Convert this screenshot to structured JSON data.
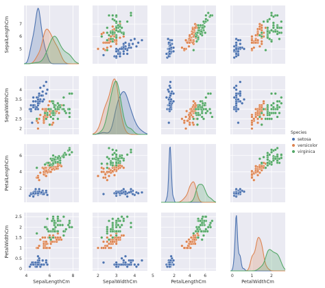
{
  "chart_data": {
    "type": "pairplot",
    "variables": [
      "SepalLengthCm",
      "SepalWidthCm",
      "PetalLengthCm",
      "PetalWidthCm"
    ],
    "axis_labels": [
      "SepalLengthCm",
      "SepalWidthCm",
      "PetalLengthCm",
      "PetalWidthCm"
    ],
    "hue": "Species",
    "legend": {
      "title": "Species",
      "placement": "right",
      "labels": [
        "setosa",
        "versicolor",
        "virginica"
      ]
    },
    "colors": {
      "setosa": "#4c72b0",
      "versicolor": "#dd8452",
      "virginica": "#55a868",
      "panel_bg": "#eaeaf2",
      "grid": "#ffffff"
    },
    "grid": true,
    "diagonal": "kde",
    "off_diagonal": "scatter",
    "limits": {
      "SepalLengthCm": [
        3.8,
        8.5
      ],
      "SepalWidthCm": [
        1.7,
        4.7
      ],
      "PetalLengthCm": [
        0.3,
        7.4
      ],
      "PetalWidthCm": [
        -0.1,
        2.7
      ]
    },
    "ticks": {
      "SepalLengthCm": [
        4,
        6,
        8
      ],
      "SepalWidthCm": [
        2,
        3,
        4,
        5
      ],
      "PetalLengthCm": [
        2,
        4,
        6
      ],
      "PetalWidthCm": [
        0,
        1,
        2
      ]
    },
    "row_ticks": {
      "SepalLengthCm": [
        5,
        6,
        7
      ],
      "SepalWidthCm": [
        2.0,
        2.5,
        3.0,
        3.5,
        4.0
      ],
      "PetalLengthCm": [
        2,
        4,
        6
      ],
      "PetalWidthCm": [
        0.0,
        0.5,
        1.0,
        1.5,
        2.0,
        2.5
      ]
    },
    "kde_peak_density": {
      "SepalLengthCm": [
        1.25,
        0.78,
        0.62
      ],
      "SepalWidthCm": [
        0.98,
        1.27,
        1.22
      ],
      "PetalLengthCm": [
        2.25,
        0.83,
        0.73
      ],
      "PetalWidthCm": [
        3.65,
        2.2,
        1.4
      ]
    },
    "series": [
      {
        "name": "setosa",
        "points": [
          [
            5.1,
            3.5,
            1.4,
            0.2
          ],
          [
            4.9,
            3.0,
            1.4,
            0.2
          ],
          [
            4.7,
            3.2,
            1.3,
            0.2
          ],
          [
            4.6,
            3.1,
            1.5,
            0.2
          ],
          [
            5.0,
            3.6,
            1.4,
            0.2
          ],
          [
            5.4,
            3.9,
            1.7,
            0.4
          ],
          [
            4.6,
            3.4,
            1.4,
            0.3
          ],
          [
            5.0,
            3.4,
            1.5,
            0.2
          ],
          [
            4.4,
            2.9,
            1.4,
            0.2
          ],
          [
            4.9,
            3.1,
            1.5,
            0.1
          ],
          [
            5.4,
            3.7,
            1.5,
            0.2
          ],
          [
            4.8,
            3.4,
            1.6,
            0.2
          ],
          [
            4.8,
            3.0,
            1.4,
            0.1
          ],
          [
            4.3,
            3.0,
            1.1,
            0.1
          ],
          [
            5.8,
            4.0,
            1.2,
            0.2
          ],
          [
            5.7,
            4.4,
            1.5,
            0.4
          ],
          [
            5.4,
            3.9,
            1.3,
            0.4
          ],
          [
            5.1,
            3.5,
            1.4,
            0.3
          ],
          [
            5.7,
            3.8,
            1.7,
            0.3
          ],
          [
            5.1,
            3.8,
            1.5,
            0.3
          ],
          [
            5.4,
            3.4,
            1.7,
            0.2
          ],
          [
            5.1,
            3.7,
            1.5,
            0.4
          ],
          [
            4.6,
            3.6,
            1.0,
            0.2
          ],
          [
            5.1,
            3.3,
            1.7,
            0.5
          ],
          [
            4.8,
            3.4,
            1.9,
            0.2
          ],
          [
            5.0,
            3.0,
            1.6,
            0.2
          ],
          [
            5.0,
            3.4,
            1.6,
            0.4
          ],
          [
            5.2,
            3.5,
            1.5,
            0.2
          ],
          [
            5.2,
            3.4,
            1.4,
            0.2
          ],
          [
            4.7,
            3.2,
            1.6,
            0.2
          ],
          [
            4.8,
            3.1,
            1.6,
            0.2
          ],
          [
            5.4,
            3.4,
            1.5,
            0.4
          ],
          [
            5.2,
            4.1,
            1.5,
            0.1
          ],
          [
            5.5,
            4.2,
            1.4,
            0.2
          ],
          [
            4.9,
            3.1,
            1.5,
            0.2
          ],
          [
            5.0,
            3.2,
            1.2,
            0.2
          ],
          [
            5.5,
            3.5,
            1.3,
            0.2
          ],
          [
            4.9,
            3.6,
            1.4,
            0.1
          ],
          [
            4.4,
            3.0,
            1.3,
            0.2
          ],
          [
            5.1,
            3.4,
            1.5,
            0.2
          ],
          [
            5.0,
            3.5,
            1.3,
            0.3
          ],
          [
            4.5,
            2.3,
            1.3,
            0.3
          ],
          [
            4.4,
            3.2,
            1.3,
            0.2
          ],
          [
            5.0,
            3.5,
            1.6,
            0.6
          ],
          [
            5.1,
            3.8,
            1.9,
            0.4
          ],
          [
            4.8,
            3.0,
            1.4,
            0.3
          ],
          [
            5.1,
            3.8,
            1.6,
            0.2
          ],
          [
            4.6,
            3.2,
            1.4,
            0.2
          ],
          [
            5.3,
            3.7,
            1.5,
            0.2
          ],
          [
            5.0,
            3.3,
            1.4,
            0.2
          ]
        ]
      },
      {
        "name": "versicolor",
        "points": [
          [
            7.0,
            3.2,
            4.7,
            1.4
          ],
          [
            6.4,
            3.2,
            4.5,
            1.5
          ],
          [
            6.9,
            3.1,
            4.9,
            1.5
          ],
          [
            5.5,
            2.3,
            4.0,
            1.3
          ],
          [
            6.5,
            2.8,
            4.6,
            1.5
          ],
          [
            5.7,
            2.8,
            4.5,
            1.3
          ],
          [
            6.3,
            3.3,
            4.7,
            1.6
          ],
          [
            4.9,
            2.4,
            3.3,
            1.0
          ],
          [
            6.6,
            2.9,
            4.6,
            1.3
          ],
          [
            5.2,
            2.7,
            3.9,
            1.4
          ],
          [
            5.0,
            2.0,
            3.5,
            1.0
          ],
          [
            5.9,
            3.0,
            4.2,
            1.5
          ],
          [
            6.0,
            2.2,
            4.0,
            1.0
          ],
          [
            6.1,
            2.9,
            4.7,
            1.4
          ],
          [
            5.6,
            2.9,
            3.6,
            1.3
          ],
          [
            6.7,
            3.1,
            4.4,
            1.4
          ],
          [
            5.6,
            3.0,
            4.5,
            1.5
          ],
          [
            5.8,
            2.7,
            4.1,
            1.0
          ],
          [
            6.2,
            2.2,
            4.5,
            1.5
          ],
          [
            5.6,
            2.5,
            3.9,
            1.1
          ],
          [
            5.9,
            3.2,
            4.8,
            1.8
          ],
          [
            6.1,
            2.8,
            4.0,
            1.3
          ],
          [
            6.3,
            2.5,
            4.9,
            1.5
          ],
          [
            6.1,
            2.8,
            4.7,
            1.2
          ],
          [
            6.4,
            2.9,
            4.3,
            1.3
          ],
          [
            6.6,
            3.0,
            4.4,
            1.4
          ],
          [
            6.8,
            2.8,
            4.8,
            1.4
          ],
          [
            6.7,
            3.0,
            5.0,
            1.7
          ],
          [
            6.0,
            2.9,
            4.5,
            1.5
          ],
          [
            5.7,
            2.6,
            3.5,
            1.0
          ],
          [
            5.5,
            2.4,
            3.8,
            1.1
          ],
          [
            5.5,
            2.4,
            3.7,
            1.0
          ],
          [
            5.8,
            2.7,
            3.9,
            1.2
          ],
          [
            6.0,
            2.7,
            5.1,
            1.6
          ],
          [
            5.4,
            3.0,
            4.5,
            1.5
          ],
          [
            6.0,
            3.4,
            4.5,
            1.6
          ],
          [
            6.7,
            3.1,
            4.7,
            1.5
          ],
          [
            6.3,
            2.3,
            4.4,
            1.3
          ],
          [
            5.6,
            3.0,
            4.1,
            1.3
          ],
          [
            5.5,
            2.5,
            4.0,
            1.3
          ],
          [
            5.5,
            2.6,
            4.4,
            1.2
          ],
          [
            6.1,
            3.0,
            4.6,
            1.4
          ],
          [
            5.8,
            2.6,
            4.0,
            1.2
          ],
          [
            5.0,
            2.3,
            3.3,
            1.0
          ],
          [
            5.6,
            2.7,
            4.2,
            1.3
          ],
          [
            5.7,
            3.0,
            4.2,
            1.2
          ],
          [
            5.7,
            2.9,
            4.2,
            1.3
          ],
          [
            6.2,
            2.9,
            4.3,
            1.3
          ],
          [
            5.1,
            2.5,
            3.0,
            1.1
          ],
          [
            5.7,
            2.8,
            4.1,
            1.3
          ]
        ]
      },
      {
        "name": "virginica",
        "points": [
          [
            6.3,
            3.3,
            6.0,
            2.5
          ],
          [
            5.8,
            2.7,
            5.1,
            1.9
          ],
          [
            7.1,
            3.0,
            5.9,
            2.1
          ],
          [
            6.3,
            2.9,
            5.6,
            1.8
          ],
          [
            6.5,
            3.0,
            5.8,
            2.2
          ],
          [
            7.6,
            3.0,
            6.6,
            2.1
          ],
          [
            4.9,
            2.5,
            4.5,
            1.7
          ],
          [
            7.3,
            2.9,
            6.3,
            1.8
          ],
          [
            6.7,
            2.5,
            5.8,
            1.8
          ],
          [
            7.2,
            3.6,
            6.1,
            2.5
          ],
          [
            6.5,
            3.2,
            5.1,
            2.0
          ],
          [
            6.4,
            2.7,
            5.3,
            1.9
          ],
          [
            6.8,
            3.0,
            5.5,
            2.1
          ],
          [
            5.7,
            2.5,
            5.0,
            2.0
          ],
          [
            5.8,
            2.8,
            5.1,
            2.4
          ],
          [
            6.4,
            3.2,
            5.3,
            2.3
          ],
          [
            6.5,
            3.0,
            5.5,
            1.8
          ],
          [
            7.7,
            3.8,
            6.7,
            2.2
          ],
          [
            7.7,
            2.6,
            6.9,
            2.3
          ],
          [
            6.0,
            2.2,
            5.0,
            1.5
          ],
          [
            6.9,
            3.2,
            5.7,
            2.3
          ],
          [
            5.6,
            2.8,
            4.9,
            2.0
          ],
          [
            7.7,
            2.8,
            6.7,
            2.0
          ],
          [
            6.3,
            2.7,
            4.9,
            1.8
          ],
          [
            6.7,
            3.3,
            5.7,
            2.1
          ],
          [
            7.2,
            3.2,
            6.0,
            1.8
          ],
          [
            6.2,
            2.8,
            4.8,
            1.8
          ],
          [
            6.1,
            3.0,
            4.9,
            1.8
          ],
          [
            6.4,
            2.8,
            5.6,
            2.1
          ],
          [
            7.2,
            3.0,
            5.8,
            1.6
          ],
          [
            7.4,
            2.8,
            6.1,
            1.9
          ],
          [
            7.9,
            3.8,
            6.4,
            2.0
          ],
          [
            6.4,
            2.8,
            5.6,
            2.2
          ],
          [
            6.3,
            2.8,
            5.1,
            1.5
          ],
          [
            6.1,
            2.6,
            5.6,
            1.4
          ],
          [
            7.7,
            3.0,
            6.1,
            2.3
          ],
          [
            6.3,
            3.4,
            5.6,
            2.4
          ],
          [
            6.4,
            3.1,
            5.5,
            1.8
          ],
          [
            6.0,
            3.0,
            4.8,
            1.8
          ],
          [
            6.9,
            3.1,
            5.4,
            2.1
          ],
          [
            6.7,
            3.1,
            5.6,
            2.4
          ],
          [
            6.9,
            3.1,
            5.1,
            2.3
          ],
          [
            5.8,
            2.7,
            5.1,
            1.9
          ],
          [
            6.8,
            3.2,
            5.9,
            2.3
          ],
          [
            6.7,
            3.3,
            5.7,
            2.5
          ],
          [
            6.7,
            3.0,
            5.2,
            2.3
          ],
          [
            6.3,
            2.5,
            5.0,
            1.9
          ],
          [
            6.5,
            3.0,
            5.2,
            2.0
          ],
          [
            6.2,
            3.4,
            5.4,
            2.3
          ],
          [
            5.9,
            3.0,
            5.1,
            1.8
          ]
        ]
      }
    ]
  }
}
